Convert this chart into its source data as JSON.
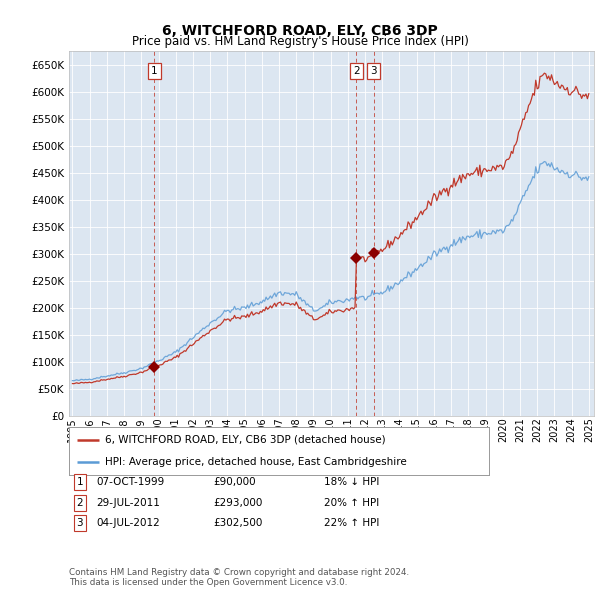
{
  "title": "6, WITCHFORD ROAD, ELY, CB6 3DP",
  "subtitle": "Price paid vs. HM Land Registry's House Price Index (HPI)",
  "background_color": "#dce6f1",
  "plot_bg_color": "#dce6f1",
  "grid_color": "#ffffff",
  "title_fontsize": 10,
  "subtitle_fontsize": 8.5,
  "ylim": [
    0,
    675000
  ],
  "yticks": [
    0,
    50000,
    100000,
    150000,
    200000,
    250000,
    300000,
    350000,
    400000,
    450000,
    500000,
    550000,
    600000,
    650000
  ],
  "sale_prices": [
    90000,
    293000,
    302500
  ],
  "sale_labels": [
    "1",
    "2",
    "3"
  ],
  "sale_info": [
    {
      "label": "1",
      "date": "07-OCT-1999",
      "price": "£90,000",
      "hpi_diff": "18% ↓ HPI"
    },
    {
      "label": "2",
      "date": "29-JUL-2011",
      "price": "£293,000",
      "hpi_diff": "20% ↑ HPI"
    },
    {
      "label": "3",
      "date": "04-JUL-2012",
      "price": "£302,500",
      "hpi_diff": "22% ↑ HPI"
    }
  ],
  "legend_entries": [
    {
      "label": "6, WITCHFORD ROAD, ELY, CB6 3DP (detached house)",
      "color": "#c0392b"
    },
    {
      "label": "HPI: Average price, detached house, East Cambridgeshire",
      "color": "#5b9bd5"
    }
  ],
  "footer": "Contains HM Land Registry data © Crown copyright and database right 2024.\nThis data is licensed under the Open Government Licence v3.0.",
  "hpi_color": "#5b9bd5",
  "price_color": "#c0392b",
  "vline_color": "#c0392b",
  "dot_color": "#8B0000",
  "hpi_anchors": {
    "1995.0": 65000,
    "1996.0": 68000,
    "1997.0": 74000,
    "1998.0": 80000,
    "1999.0": 88000,
    "2000.0": 102000,
    "2001.0": 118000,
    "2002.0": 145000,
    "2003.0": 172000,
    "2004.0": 195000,
    "2005.0": 200000,
    "2006.0": 212000,
    "2007.0": 228000,
    "2008.0": 225000,
    "2008.5": 210000,
    "2009.0": 195000,
    "2009.5": 200000,
    "2010.0": 210000,
    "2011.0": 215000,
    "2011.5": 220000,
    "2012.0": 218000,
    "2013.0": 228000,
    "2014.0": 248000,
    "2015.0": 272000,
    "2016.0": 298000,
    "2017.0": 318000,
    "2018.0": 332000,
    "2019.0": 338000,
    "2020.0": 342000,
    "2020.5": 358000,
    "2021.0": 390000,
    "2021.5": 425000,
    "2022.0": 455000,
    "2022.5": 470000,
    "2023.0": 460000,
    "2023.5": 452000,
    "2024.0": 448000,
    "2024.5": 442000,
    "2025.0": 440000
  }
}
